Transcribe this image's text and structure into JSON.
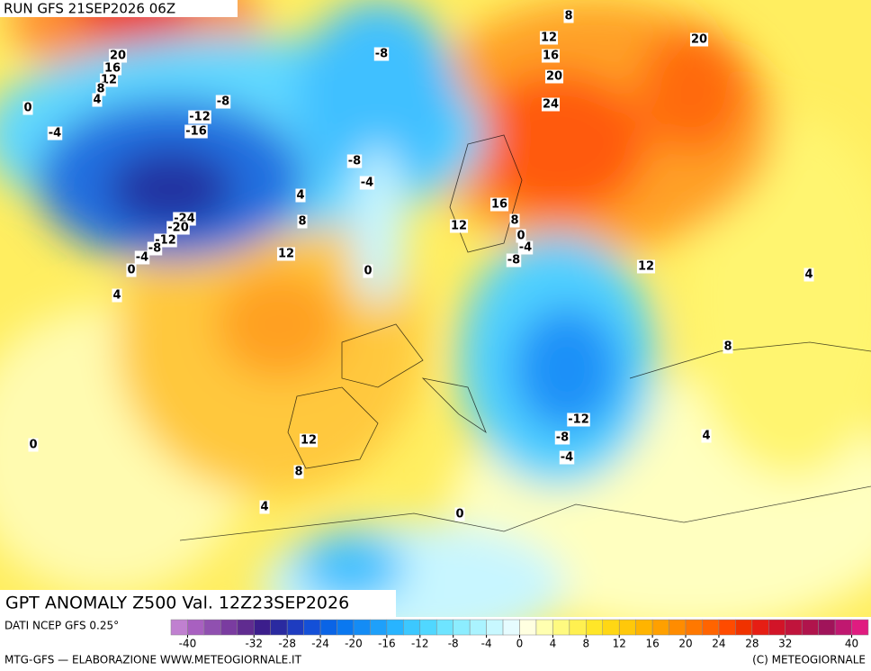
{
  "header": {
    "run": "RUN GFS 21SEP2026 06Z",
    "title": "GPT ANOMALY Z500 Val. 12Z23SEP2026"
  },
  "contour_labels": [
    "20",
    "16",
    "12",
    "8",
    "4",
    "0",
    "-4",
    "-8",
    "-8",
    "-12",
    "-16",
    "-8",
    "-4",
    "4",
    "8",
    "-24",
    "-20",
    "-12",
    "-8",
    "-4",
    "0",
    "4",
    "12",
    "0",
    "8",
    "12",
    "16",
    "20",
    "24",
    "20",
    "12",
    "16",
    "8",
    "0",
    "-4",
    "-8",
    "12",
    "4",
    "8",
    "-12",
    "-8",
    "-4",
    "4",
    "0",
    "12",
    "8",
    "4",
    "0"
  ],
  "colorbar": {
    "lim": [
      -42,
      42
    ],
    "colors": [
      "#c080d0",
      "#a860c0",
      "#9050b0",
      "#7a3ca0",
      "#602c90",
      "#3c1e8c",
      "#2a2aa0",
      "#1e3cc0",
      "#1450d8",
      "#0a64e6",
      "#0a78f0",
      "#148cf5",
      "#1ea0fa",
      "#28b4ff",
      "#3cc8ff",
      "#50d7ff",
      "#6ee4ff",
      "#8cedff",
      "#aaf3ff",
      "#c8f8ff",
      "#e6fcff",
      "#ffffe0",
      "#ffffb0",
      "#fffa80",
      "#fff050",
      "#ffe628",
      "#ffd714",
      "#ffc80a",
      "#ffb400",
      "#ffa000",
      "#ff8c00",
      "#ff7800",
      "#ff6400",
      "#ff4b00",
      "#f03200",
      "#e61e14",
      "#d21428",
      "#c0143c",
      "#b0144c",
      "#a0145a",
      "#c01870",
      "#e01c80"
    ],
    "ticks": [
      -40,
      -32,
      -28,
      -24,
      -20,
      -16,
      -12,
      -8,
      -4,
      0,
      4,
      8,
      12,
      16,
      20,
      24,
      28,
      32,
      40
    ]
  },
  "footer": {
    "source": "DATI NCEP GFS 0.25°",
    "credit": "MTG-GFS — ELABORAZIONE WWW.METEOGIORNALE.IT",
    "copyright": "(C) METEOGIORNALE"
  }
}
